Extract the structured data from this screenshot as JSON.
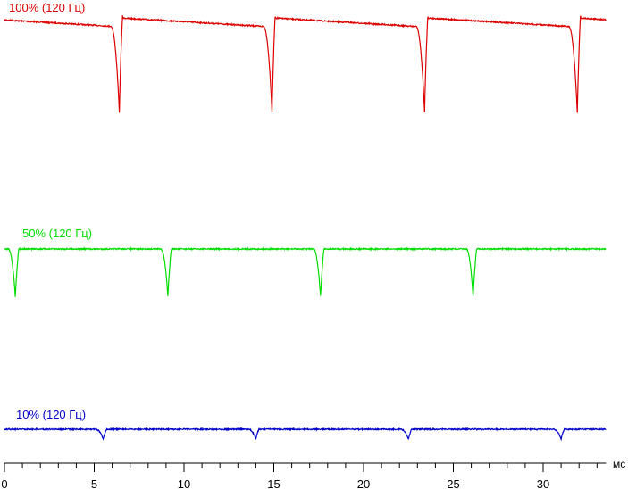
{
  "chart_data": {
    "type": "line",
    "title": "",
    "xlabel": "мс",
    "ylabel": "",
    "xlim": [
      0,
      33.5
    ],
    "x_ticks_major": [
      0,
      5,
      10,
      15,
      20,
      25,
      30
    ],
    "x_tick_labels": [
      "0",
      "5",
      "10",
      "15",
      "20",
      "25",
      "30"
    ],
    "x_minor_step": 1,
    "grid": false,
    "legend": "inline labels above each trace",
    "period_ms": 8.33,
    "series": [
      {
        "name": "100% (120 Гц)",
        "color": "#dd0000",
        "level": "high",
        "x_start": 0,
        "x_end": 33.5,
        "dip_times": [
          6.4,
          14.9,
          23.4,
          31.9
        ],
        "dip_depth": "deep",
        "sawtooth_droop": true
      },
      {
        "name": "50% (120 Гц)",
        "color": "#00dd00",
        "level": "medium",
        "x_start": 0,
        "x_end": 33.5,
        "dip_times": [
          0.6,
          9.1,
          17.6,
          26.1
        ],
        "dip_depth": "medium",
        "sawtooth_droop": false
      },
      {
        "name": "10% (120 Гц)",
        "color": "#0000cc",
        "level": "low",
        "x_start": 0,
        "x_end": 33.5,
        "dip_times": [
          5.5,
          14.0,
          22.5,
          31.0
        ],
        "dip_depth": "shallow",
        "sawtooth_droop": false
      }
    ]
  }
}
